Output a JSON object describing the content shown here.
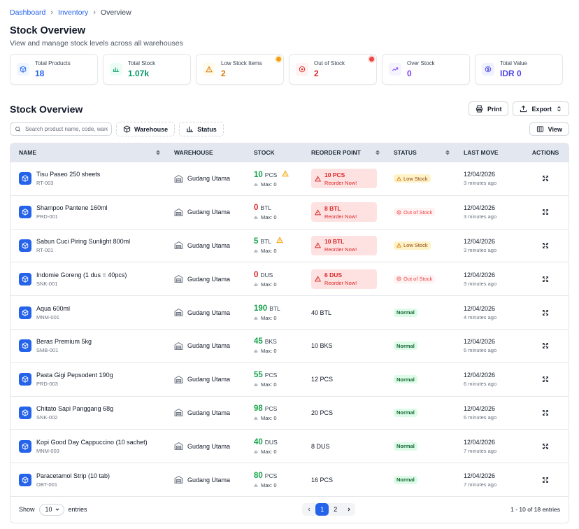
{
  "breadcrumb": [
    "Dashboard",
    "Inventory",
    "Overview"
  ],
  "page_title": "Stock Overview",
  "page_subtitle": "View and manage stock levels across all warehouses",
  "stats": [
    {
      "label": "Total Products",
      "value": "18",
      "color": "#2563eb",
      "bg": "#eff6ff",
      "icon": "cube-icon",
      "dot": ""
    },
    {
      "label": "Total Stock",
      "value": "1.07k",
      "color": "#059669",
      "bg": "#ecfdf5",
      "icon": "bar-chart-icon",
      "dot": ""
    },
    {
      "label": "Low Stock Items",
      "value": "2",
      "color": "#d97706",
      "bg": "#fffbeb",
      "icon": "warning-icon",
      "dot": "#f59e0b"
    },
    {
      "label": "Out of Stock",
      "value": "2",
      "color": "#dc2626",
      "bg": "#fef2f2",
      "icon": "x-circle-icon",
      "dot": "#ef4444"
    },
    {
      "label": "Over Stock",
      "value": "0",
      "color": "#7c3aed",
      "bg": "#f5f3ff",
      "icon": "trending-up-icon",
      "dot": ""
    },
    {
      "label": "Total Value",
      "value": "IDR 0",
      "color": "#4f46e5",
      "bg": "#eef2ff",
      "icon": "dollar-icon",
      "dot": ""
    }
  ],
  "section_title": "Stock Overview",
  "actions": {
    "print": "Print",
    "export": "Export",
    "view": "View"
  },
  "search": {
    "placeholder": "Search product name, code, warehouse"
  },
  "filters": {
    "warehouse": "Warehouse",
    "status": "Status"
  },
  "columns": [
    "NAME",
    "WAREHOUSE",
    "STOCK",
    "REORDER POINT",
    "STATUS",
    "LAST MOVE",
    "ACTIONS"
  ],
  "rows": [
    {
      "name": "Tisu Paseo 250 sheets",
      "code": "RT-003",
      "warehouse": "Gudang Utama",
      "stock": "10",
      "unit": "PCS",
      "max": "Max: 0",
      "reorder": "10 PCS",
      "reorder_note": "Reorder Now!",
      "reorder_alert": true,
      "status": "Low Stock",
      "status_type": "low",
      "date": "12/04/2026",
      "ago": "3 minutes ago",
      "warn": true
    },
    {
      "name": "Shampoo Pantene 160ml",
      "code": "PRD-001",
      "warehouse": "Gudang Utama",
      "stock": "0",
      "unit": "BTL",
      "max": "Max: 0",
      "reorder": "8 BTL",
      "reorder_note": "Reorder Now!",
      "reorder_alert": true,
      "status": "Out of Stock",
      "status_type": "out",
      "date": "12/04/2026",
      "ago": "3 minutes ago",
      "warn": false
    },
    {
      "name": "Sabun Cuci Piring Sunlight 800ml",
      "code": "RT-001",
      "warehouse": "Gudang Utama",
      "stock": "5",
      "unit": "BTL",
      "max": "Max: 0",
      "reorder": "10 BTL",
      "reorder_note": "Reorder Now!",
      "reorder_alert": true,
      "status": "Low Stock",
      "status_type": "low",
      "date": "12/04/2026",
      "ago": "3 minutes ago",
      "warn": true
    },
    {
      "name": "Indomie Goreng (1 dus = 40pcs)",
      "code": "SNK-001",
      "warehouse": "Gudang Utama",
      "stock": "0",
      "unit": "DUS",
      "max": "Max: 0",
      "reorder": "6 DUS",
      "reorder_note": "Reorder Now!",
      "reorder_alert": true,
      "status": "Out of Stock",
      "status_type": "out",
      "date": "12/04/2026",
      "ago": "3 minutes ago",
      "warn": false
    },
    {
      "name": "Aqua 600ml",
      "code": "MNM-001",
      "warehouse": "Gudang Utama",
      "stock": "190",
      "unit": "BTL",
      "max": "Max: 0",
      "reorder": "40 BTL",
      "reorder_note": "",
      "reorder_alert": false,
      "status": "Normal",
      "status_type": "normal",
      "date": "12/04/2026",
      "ago": "4 minutes ago",
      "warn": false
    },
    {
      "name": "Beras Premium 5kg",
      "code": "SMB-001",
      "warehouse": "Gudang Utama",
      "stock": "45",
      "unit": "BKS",
      "max": "Max: 0",
      "reorder": "10 BKS",
      "reorder_note": "",
      "reorder_alert": false,
      "status": "Normal",
      "status_type": "normal",
      "date": "12/04/2026",
      "ago": "6 minutes ago",
      "warn": false
    },
    {
      "name": "Pasta Gigi Pepsodent 190g",
      "code": "PRD-003",
      "warehouse": "Gudang Utama",
      "stock": "55",
      "unit": "PCS",
      "max": "Max: 0",
      "reorder": "12 PCS",
      "reorder_note": "",
      "reorder_alert": false,
      "status": "Normal",
      "status_type": "normal",
      "date": "12/04/2026",
      "ago": "6 minutes ago",
      "warn": false
    },
    {
      "name": "Chitato Sapi Panggang 68g",
      "code": "SNK-002",
      "warehouse": "Gudang Utama",
      "stock": "98",
      "unit": "PCS",
      "max": "Max: 0",
      "reorder": "20 PCS",
      "reorder_note": "",
      "reorder_alert": false,
      "status": "Normal",
      "status_type": "normal",
      "date": "12/04/2026",
      "ago": "6 minutes ago",
      "warn": false
    },
    {
      "name": "Kopi Good Day Cappuccino (10 sachet)",
      "code": "MNM-003",
      "warehouse": "Gudang Utama",
      "stock": "40",
      "unit": "DUS",
      "max": "Max: 0",
      "reorder": "8 DUS",
      "reorder_note": "",
      "reorder_alert": false,
      "status": "Normal",
      "status_type": "normal",
      "date": "12/04/2026",
      "ago": "7 minutes ago",
      "warn": false
    },
    {
      "name": "Paracetamol Strip (10 tab)",
      "code": "OBT-001",
      "warehouse": "Gudang Utama",
      "stock": "80",
      "unit": "PCS",
      "max": "Max: 0",
      "reorder": "16 PCS",
      "reorder_note": "",
      "reorder_alert": false,
      "status": "Normal",
      "status_type": "normal",
      "date": "12/04/2026",
      "ago": "7 minutes ago",
      "warn": false
    }
  ],
  "footer": {
    "show": "Show",
    "page_size": "10",
    "entries": "entries",
    "pages": [
      "1",
      "2"
    ],
    "current_page": "1",
    "info": "1 - 10 of 18 entries"
  },
  "colors": {
    "accent": "#2563eb",
    "stock_ok": "#16a34a",
    "stock_zero": "#dc2626",
    "stock_low": "#16a34a"
  }
}
